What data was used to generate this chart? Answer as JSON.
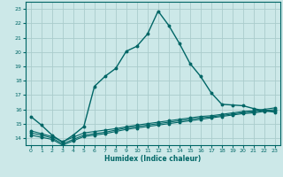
{
  "xlabel": "Humidex (Indice chaleur)",
  "background_color": "#cce8e8",
  "grid_color": "#aacccc",
  "line_color": "#006666",
  "xlim": [
    -0.5,
    23.5
  ],
  "ylim": [
    13.5,
    23.5
  ],
  "xticks": [
    0,
    1,
    2,
    3,
    4,
    5,
    6,
    7,
    8,
    9,
    10,
    11,
    12,
    13,
    14,
    15,
    16,
    17,
    18,
    19,
    20,
    21,
    22,
    23
  ],
  "yticks": [
    14,
    15,
    16,
    17,
    18,
    19,
    20,
    21,
    22,
    23
  ],
  "line1_x": [
    0,
    1,
    2,
    3,
    4,
    5,
    6,
    7,
    8,
    9,
    10,
    11,
    12,
    13,
    14,
    15,
    16,
    17,
    18,
    19,
    20,
    21,
    22,
    23
  ],
  "line1_y": [
    15.5,
    14.9,
    14.2,
    13.7,
    14.2,
    14.8,
    17.6,
    18.3,
    18.85,
    20.05,
    20.4,
    21.25,
    22.85,
    21.85,
    20.6,
    19.2,
    18.3,
    17.15,
    16.35,
    16.3,
    16.25,
    16.05,
    15.9,
    15.8
  ],
  "line2_x": [
    0,
    1,
    2,
    3,
    4,
    5,
    6,
    7,
    8,
    9,
    10,
    11,
    12,
    13,
    14,
    15,
    16,
    17,
    18,
    19,
    20,
    21,
    22,
    23
  ],
  "line2_y": [
    14.5,
    14.3,
    14.1,
    13.75,
    14.05,
    14.35,
    14.45,
    14.55,
    14.65,
    14.78,
    14.9,
    15.0,
    15.1,
    15.2,
    15.3,
    15.4,
    15.5,
    15.55,
    15.65,
    15.75,
    15.85,
    15.9,
    16.0,
    16.1
  ],
  "line3_x": [
    0,
    1,
    2,
    3,
    4,
    5,
    6,
    7,
    8,
    9,
    10,
    11,
    12,
    13,
    14,
    15,
    16,
    17,
    18,
    19,
    20,
    21,
    22,
    23
  ],
  "line3_y": [
    14.2,
    14.05,
    13.9,
    13.5,
    13.8,
    14.1,
    14.2,
    14.3,
    14.45,
    14.6,
    14.7,
    14.8,
    14.9,
    15.0,
    15.1,
    15.2,
    15.3,
    15.4,
    15.5,
    15.6,
    15.7,
    15.75,
    15.85,
    15.9
  ],
  "line4_x": [
    0,
    1,
    2,
    3,
    4,
    5,
    6,
    7,
    8,
    9,
    10,
    11,
    12,
    13,
    14,
    15,
    16,
    17,
    18,
    19,
    20,
    21,
    22,
    23
  ],
  "line4_y": [
    14.35,
    14.2,
    14.0,
    13.6,
    13.9,
    14.2,
    14.3,
    14.4,
    14.55,
    14.7,
    14.8,
    14.9,
    15.0,
    15.1,
    15.2,
    15.3,
    15.4,
    15.47,
    15.57,
    15.67,
    15.77,
    15.82,
    15.92,
    15.97
  ]
}
